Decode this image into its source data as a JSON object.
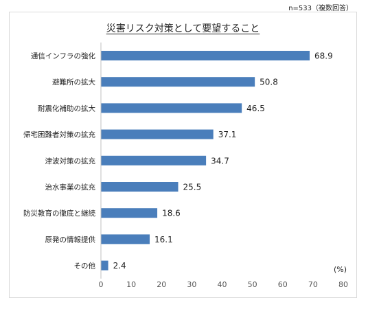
{
  "sample_note": "n=533（複数回答）",
  "chart_data": {
    "type": "bar",
    "orientation": "horizontal",
    "title": "災害リスク対策として要望すること",
    "categories": [
      "通信インフラの強化",
      "避難所の拡大",
      "耐震化補助の拡大",
      "帰宅困難者対策の拡充",
      "津波対策の拡充",
      "治水事業の拡充",
      "防災教育の徹底と継続",
      "原発の情報提供",
      "その他"
    ],
    "values": [
      68.9,
      50.8,
      46.5,
      37.1,
      34.7,
      25.5,
      18.6,
      16.1,
      2.4
    ],
    "xlim": [
      0,
      80
    ],
    "x_ticks": [
      0,
      10,
      20,
      30,
      40,
      50,
      60,
      70,
      80
    ],
    "unit_label": "(%)",
    "bar_color": "#4a7ebb",
    "grid": false,
    "legend": "none"
  }
}
